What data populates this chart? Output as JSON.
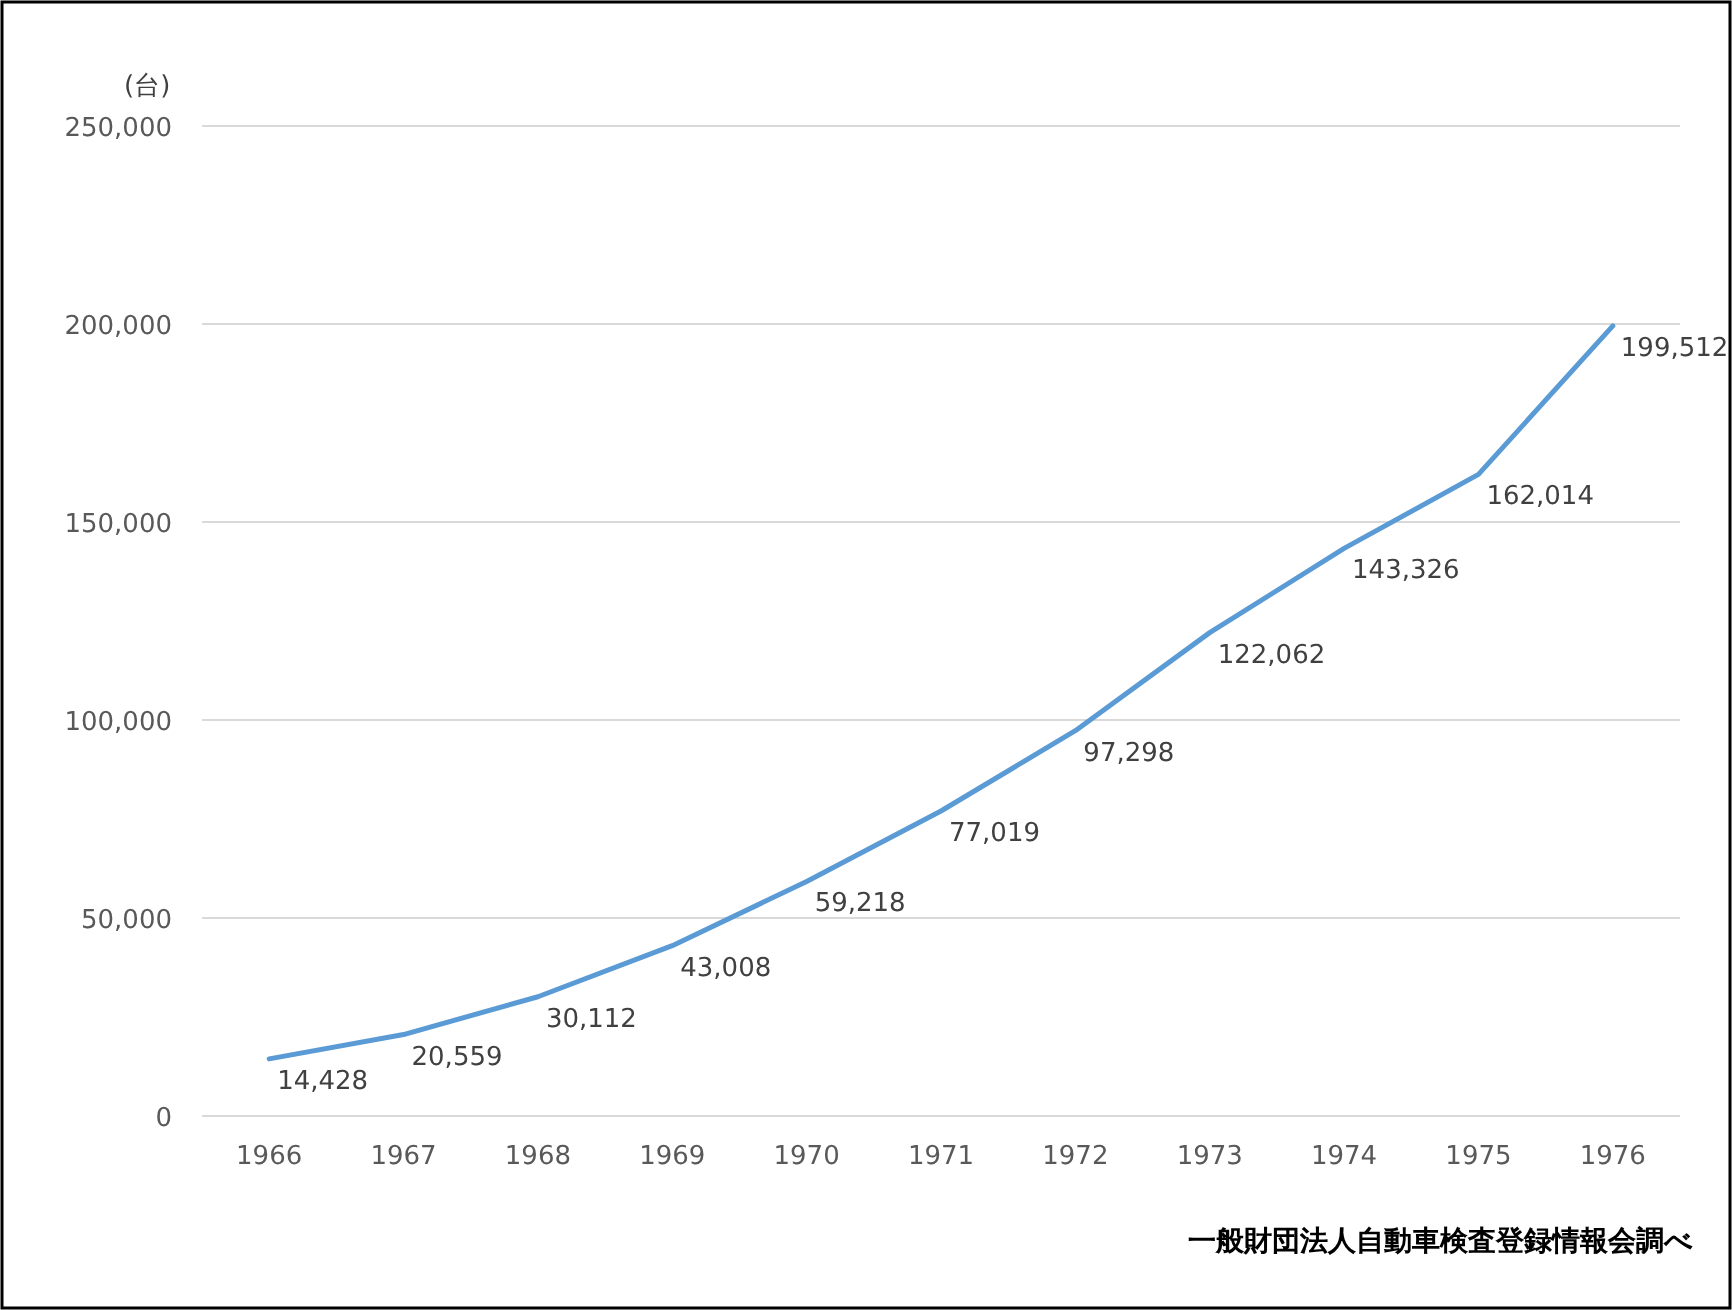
{
  "chart_data": {
    "type": "line",
    "ylabel": "(台)",
    "annotations": [
      "一般財団法人自動車検査登録情報会調べ"
    ],
    "categories": [
      "1966",
      "1967",
      "1968",
      "1969",
      "1970",
      "1971",
      "1972",
      "1973",
      "1974",
      "1975",
      "1976"
    ],
    "values": [
      14428,
      20559,
      30112,
      43008,
      59218,
      77019,
      97298,
      122062,
      143326,
      162014,
      199512
    ],
    "value_labels": [
      "14,428",
      "20,559",
      "30,112",
      "43,008",
      "59,218",
      "77,019",
      "97,298",
      "122,062",
      "143,326",
      "162,014",
      "199,512"
    ],
    "color": "#5b9bd5",
    "ylim": [
      0,
      250000
    ],
    "yticks": [
      0,
      {
        "value": 50000,
        "label": "50,000"
      },
      {
        "value": 100000,
        "label": "100,000"
      },
      {
        "value": 150000,
        "label": "150,000"
      },
      {
        "value": 200000,
        "label": "200,000"
      },
      {
        "value": 250000,
        "label": "250,000"
      }
    ],
    "grid": "y"
  }
}
